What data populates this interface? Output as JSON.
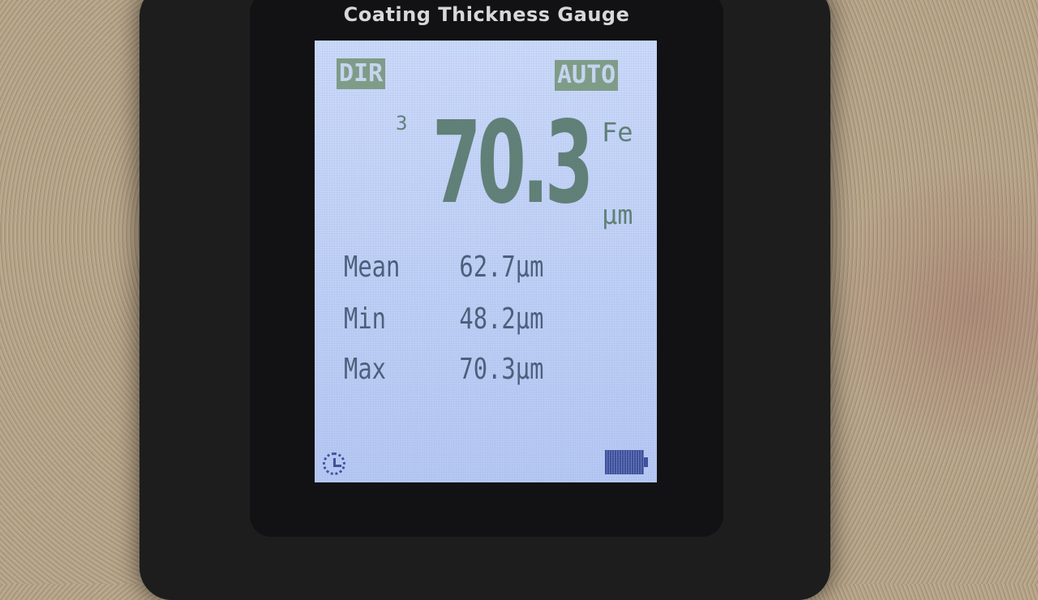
{
  "device_title": "Coating Thickness Gauge",
  "screen": {
    "mode_badge": "DIR",
    "auto_badge": "AUTO",
    "reading_count": "3",
    "reading": "70.3",
    "substrate": "Fe",
    "unit": "μm",
    "stats": [
      {
        "label": "Mean",
        "value": "62.7μm"
      },
      {
        "label": "Min",
        "value": "48.2μm"
      },
      {
        "label": "Max",
        "value": "70.3μm"
      }
    ],
    "status_icons": [
      "clock-icon",
      "battery-icon"
    ],
    "battery_level": 1.0
  }
}
